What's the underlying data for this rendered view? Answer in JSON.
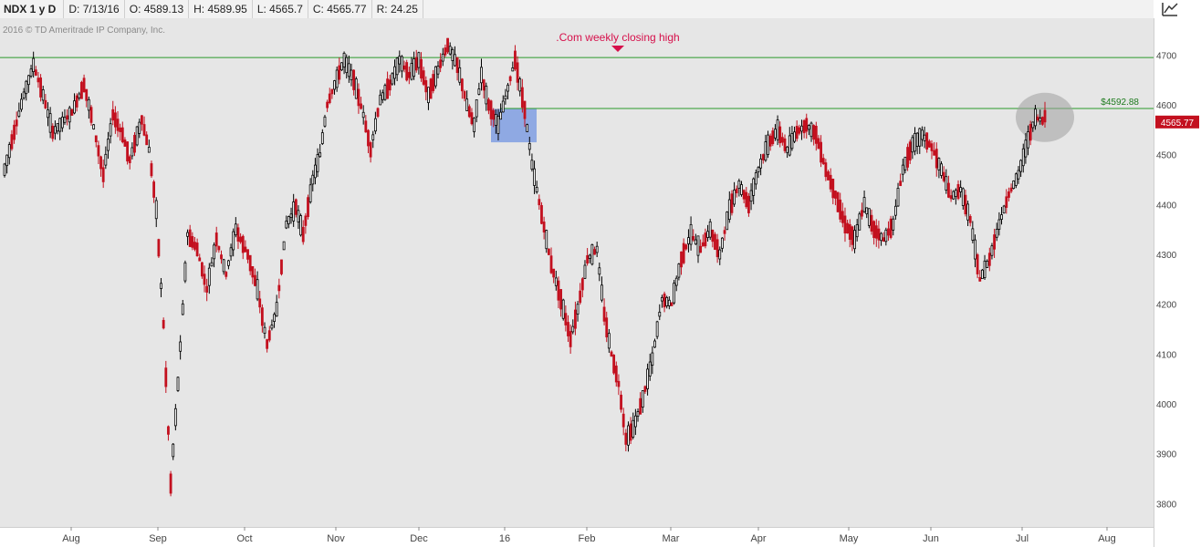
{
  "header": {
    "symbol": "NDX 1 y D",
    "date": "D: 7/13/16",
    "open": "O: 4589.13",
    "high": "H: 4589.95",
    "low": "L: 4565.7",
    "close": "C: 4565.77",
    "range": "R: 24.25"
  },
  "toolbar": {
    "icon": "drawing-tool-icon"
  },
  "copyright": "2016 © TD Ameritrade IP Company, Inc.",
  "colors": {
    "up": "#000000",
    "down": "#c3101f",
    "grid_bg": "#e6e6e6",
    "hline": "#2a9a2a",
    "annotation": "#d6104b",
    "zone": "#8fa9e3",
    "highlight": "#9e9e9e",
    "last_price_bg": "#c3101f"
  },
  "chart_data": {
    "type": "candlestick",
    "y_ticks": [
      3800,
      3900,
      4000,
      4100,
      4200,
      4300,
      4400,
      4500,
      4600,
      4700
    ],
    "ylim": [
      3753,
      4774
    ],
    "x_ticks": [
      "Aug",
      "Sep",
      "Oct",
      "Nov",
      "Dec",
      "16",
      "Feb",
      "Mar",
      "Apr",
      "May",
      "Jun",
      "Jul",
      "Aug"
    ],
    "horizontal_lines": [
      {
        "value": 4695
      },
      {
        "value": 4592.88,
        "label": "$4592.88"
      }
    ],
    "annotations": [
      {
        "text": ".Com weekly closing high",
        "position": "top-center",
        "marker": "down-triangle"
      }
    ],
    "last_price": {
      "value": 4565.77,
      "label": "4565.77"
    },
    "path": [
      [
        0,
        4470
      ],
      [
        8,
        4620
      ],
      [
        12,
        4680
      ],
      [
        16,
        4620
      ],
      [
        20,
        4545
      ],
      [
        28,
        4585
      ],
      [
        33,
        4640
      ],
      [
        36,
        4580
      ],
      [
        41,
        4460
      ],
      [
        45,
        4580
      ],
      [
        49,
        4540
      ],
      [
        52,
        4490
      ],
      [
        57,
        4570
      ],
      [
        60,
        4510
      ],
      [
        63,
        4390
      ],
      [
        66,
        4160
      ],
      [
        69,
        3840
      ],
      [
        72,
        4040
      ],
      [
        76,
        4340
      ],
      [
        80,
        4310
      ],
      [
        84,
        4230
      ],
      [
        88,
        4330
      ],
      [
        92,
        4260
      ],
      [
        96,
        4350
      ],
      [
        101,
        4300
      ],
      [
        105,
        4230
      ],
      [
        109,
        4120
      ],
      [
        113,
        4190
      ],
      [
        117,
        4360
      ],
      [
        121,
        4395
      ],
      [
        124,
        4340
      ],
      [
        128,
        4450
      ],
      [
        131,
        4500
      ],
      [
        134,
        4600
      ],
      [
        137,
        4640
      ],
      [
        141,
        4690
      ],
      [
        145,
        4650
      ],
      [
        149,
        4580
      ],
      [
        152,
        4510
      ],
      [
        156,
        4610
      ],
      [
        160,
        4640
      ],
      [
        164,
        4690
      ],
      [
        168,
        4660
      ],
      [
        172,
        4690
      ],
      [
        176,
        4620
      ],
      [
        180,
        4670
      ],
      [
        184,
        4720
      ],
      [
        188,
        4680
      ],
      [
        192,
        4600
      ],
      [
        195,
        4560
      ],
      [
        198,
        4660
      ],
      [
        201,
        4600
      ],
      [
        205,
        4560
      ],
      [
        208,
        4615
      ],
      [
        212,
        4690
      ],
      [
        216,
        4590
      ],
      [
        219,
        4480
      ],
      [
        223,
        4380
      ],
      [
        227,
        4280
      ],
      [
        231,
        4210
      ],
      [
        235,
        4130
      ],
      [
        238,
        4190
      ],
      [
        242,
        4290
      ],
      [
        246,
        4310
      ],
      [
        249,
        4180
      ],
      [
        252,
        4100
      ],
      [
        255,
        4040
      ],
      [
        258,
        3930
      ],
      [
        261,
        3950
      ],
      [
        265,
        4010
      ],
      [
        269,
        4090
      ],
      [
        273,
        4210
      ],
      [
        277,
        4200
      ],
      [
        281,
        4290
      ],
      [
        285,
        4340
      ],
      [
        289,
        4310
      ],
      [
        293,
        4350
      ],
      [
        297,
        4300
      ],
      [
        301,
        4390
      ],
      [
        305,
        4440
      ],
      [
        309,
        4400
      ],
      [
        313,
        4470
      ],
      [
        317,
        4520
      ],
      [
        321,
        4550
      ],
      [
        325,
        4510
      ],
      [
        329,
        4545
      ],
      [
        333,
        4560
      ],
      [
        337,
        4540
      ],
      [
        341,
        4470
      ],
      [
        345,
        4420
      ],
      [
        349,
        4360
      ],
      [
        353,
        4330
      ],
      [
        357,
        4400
      ],
      [
        361,
        4350
      ],
      [
        365,
        4330
      ],
      [
        369,
        4360
      ],
      [
        373,
        4470
      ],
      [
        377,
        4520
      ],
      [
        381,
        4540
      ],
      [
        385,
        4515
      ],
      [
        389,
        4470
      ],
      [
        393,
        4415
      ],
      [
        397,
        4430
      ],
      [
        401,
        4370
      ],
      [
        405,
        4250
      ],
      [
        409,
        4290
      ],
      [
        413,
        4360
      ],
      [
        417,
        4420
      ],
      [
        421,
        4460
      ],
      [
        425,
        4530
      ],
      [
        428,
        4575
      ],
      [
        432,
        4566
      ]
    ]
  }
}
